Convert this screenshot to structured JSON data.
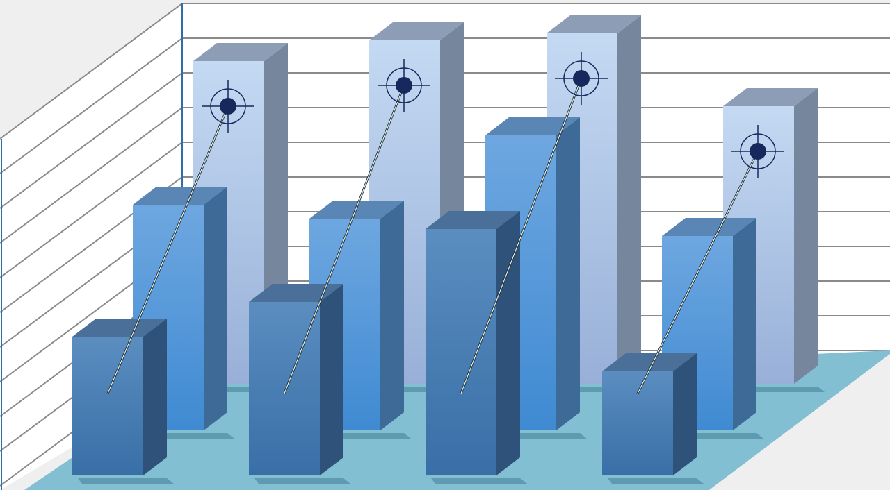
{
  "chart_data": {
    "type": "bar",
    "style": "3d-clustered",
    "title": "",
    "xlabel": "",
    "ylabel": "",
    "grid": true,
    "categories": [
      "",
      "",
      "",
      ""
    ],
    "series": [
      {
        "values": [
          9.3,
          9.9,
          10.1,
          8.0
        ],
        "color": "#b4ccec",
        "target_marker": true
      },
      {
        "values": [
          6.5,
          6.1,
          8.5,
          5.6
        ],
        "color": "#4f97db"
      },
      {
        "values": [
          4.0,
          5.0,
          7.1,
          3.0
        ],
        "color": "#3f78ae"
      }
    ],
    "ylim": [
      0,
      11
    ]
  },
  "colors": {
    "background": "#efefef",
    "wall": "#ffffff",
    "gridline": "#8a8a8a",
    "floor": "#82bfd3",
    "wall_edge": "#2f6fa8",
    "target": "#16285c"
  }
}
